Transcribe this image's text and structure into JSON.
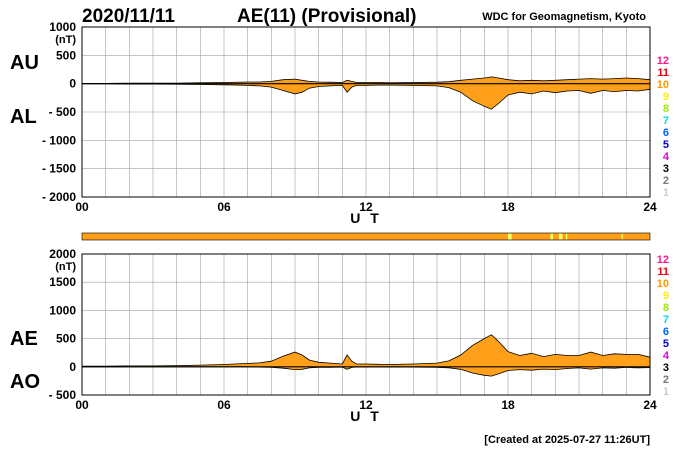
{
  "header": {
    "date": "2020/11/11",
    "title": "AE(11) (Provisional)",
    "source": "WDC for Geomagnetism, Kyoto"
  },
  "footer": {
    "created": "[Created at 2025-07-27 11:26UT]"
  },
  "colors": {
    "fill": "#ff9f1a",
    "grid": "#a0a0a0",
    "axis": "#000000",
    "bar": "#ff9f1a",
    "bar_highlight": "#ffff66"
  },
  "scale_legend": {
    "items": [
      {
        "label": "12",
        "color": "#ff1a8c"
      },
      {
        "label": "11",
        "color": "#e8000d"
      },
      {
        "label": "10",
        "color": "#ff9900"
      },
      {
        "label": "9",
        "color": "#ffee00"
      },
      {
        "label": "8",
        "color": "#99ee00"
      },
      {
        "label": "7",
        "color": "#00dddd"
      },
      {
        "label": "6",
        "color": "#0066ff"
      },
      {
        "label": "5",
        "color": "#0000cc"
      },
      {
        "label": "4",
        "color": "#dd00dd"
      },
      {
        "label": "3",
        "color": "#000000"
      },
      {
        "label": "2",
        "color": "#777777"
      },
      {
        "label": "1",
        "color": "#cccccc"
      }
    ]
  },
  "data_bar": {
    "highlights": [
      [
        18.0,
        18.15
      ],
      [
        19.8,
        19.9
      ],
      [
        20.15,
        20.3
      ],
      [
        20.45,
        20.5
      ],
      [
        22.8,
        22.85
      ]
    ]
  },
  "chart_data": [
    {
      "type": "area",
      "name": "AU / AL",
      "ylabel_top": "AU",
      "ylabel_bottom": "AL",
      "unit": "(nT)",
      "xlabel": "U T",
      "xlim": [
        0,
        24
      ],
      "ylim": [
        -2000,
        1000
      ],
      "yticks": [
        1000,
        500,
        0,
        -500,
        -1000,
        -1500,
        -2000
      ],
      "ytick_labels": [
        "1000",
        "500",
        "0",
        "- 500",
        "- 1000",
        "- 1500",
        "- 2000"
      ],
      "xticks": [
        0,
        6,
        12,
        18,
        24
      ],
      "xtick_labels": [
        "00",
        "06",
        "12",
        "18",
        "24"
      ],
      "x": [
        0,
        1,
        2,
        3,
        4,
        5,
        6,
        7,
        7.5,
        8,
        8.5,
        9,
        9.3,
        9.6,
        10,
        10.5,
        11,
        11.2,
        11.4,
        11.6,
        12,
        12.5,
        13,
        14,
        15,
        15.5,
        16,
        16.5,
        17,
        17.3,
        17.6,
        18,
        18.5,
        19,
        19.5,
        20,
        20.5,
        21,
        21.5,
        22,
        22.5,
        23,
        23.5,
        24
      ],
      "series": [
        {
          "values": [
            5,
            5,
            8,
            8,
            10,
            15,
            20,
            30,
            30,
            40,
            70,
            80,
            60,
            40,
            30,
            25,
            20,
            60,
            40,
            20,
            20,
            20,
            15,
            20,
            25,
            35,
            60,
            80,
            100,
            120,
            100,
            70,
            50,
            60,
            50,
            60,
            70,
            80,
            90,
            80,
            90,
            100,
            90,
            70
          ]
        },
        {
          "values": [
            -5,
            -5,
            -8,
            -8,
            -10,
            -15,
            -20,
            -30,
            -40,
            -60,
            -120,
            -180,
            -150,
            -80,
            -50,
            -40,
            -30,
            -150,
            -60,
            -30,
            -30,
            -25,
            -25,
            -30,
            -40,
            -70,
            -150,
            -300,
            -400,
            -450,
            -350,
            -200,
            -150,
            -180,
            -130,
            -160,
            -130,
            -120,
            -170,
            -120,
            -140,
            -120,
            -130,
            -100
          ]
        }
      ]
    },
    {
      "type": "area",
      "name": "AE / AO",
      "ylabel_top": "AE",
      "ylabel_bottom": "AO",
      "unit": "(nT)",
      "xlabel": "U T",
      "xlim": [
        0,
        24
      ],
      "ylim": [
        -500,
        2000
      ],
      "yticks": [
        2000,
        1500,
        1000,
        500,
        0,
        -500
      ],
      "ytick_labels": [
        "2000",
        "1500",
        "1000",
        "500",
        "0",
        "- 500"
      ],
      "xticks": [
        0,
        6,
        12,
        18,
        24
      ],
      "xtick_labels": [
        "00",
        "06",
        "12",
        "18",
        "24"
      ],
      "x": [
        0,
        1,
        2,
        3,
        4,
        5,
        6,
        7,
        7.5,
        8,
        8.5,
        9,
        9.3,
        9.6,
        10,
        10.5,
        11,
        11.2,
        11.4,
        11.6,
        12,
        12.5,
        13,
        14,
        15,
        15.5,
        16,
        16.5,
        17,
        17.3,
        17.6,
        18,
        18.5,
        19,
        19.5,
        20,
        20.5,
        21,
        21.5,
        22,
        22.5,
        23,
        23.5,
        24
      ],
      "series": [
        {
          "values": [
            10,
            10,
            16,
            16,
            20,
            30,
            40,
            60,
            70,
            100,
            190,
            260,
            210,
            120,
            80,
            65,
            50,
            210,
            100,
            50,
            50,
            45,
            40,
            50,
            65,
            105,
            210,
            380,
            500,
            570,
            450,
            270,
            200,
            240,
            180,
            220,
            200,
            200,
            260,
            200,
            230,
            220,
            220,
            170
          ]
        },
        {
          "values": [
            0,
            0,
            0,
            0,
            0,
            0,
            0,
            0,
            -5,
            -10,
            -25,
            -50,
            -45,
            -20,
            -10,
            -8,
            -5,
            -45,
            -10,
            -5,
            -5,
            -3,
            -5,
            -5,
            -8,
            -18,
            -45,
            -110,
            -150,
            -165,
            -125,
            -65,
            -50,
            -60,
            -40,
            -50,
            -30,
            -20,
            -40,
            -20,
            -25,
            -10,
            -20,
            -15
          ]
        }
      ]
    }
  ]
}
